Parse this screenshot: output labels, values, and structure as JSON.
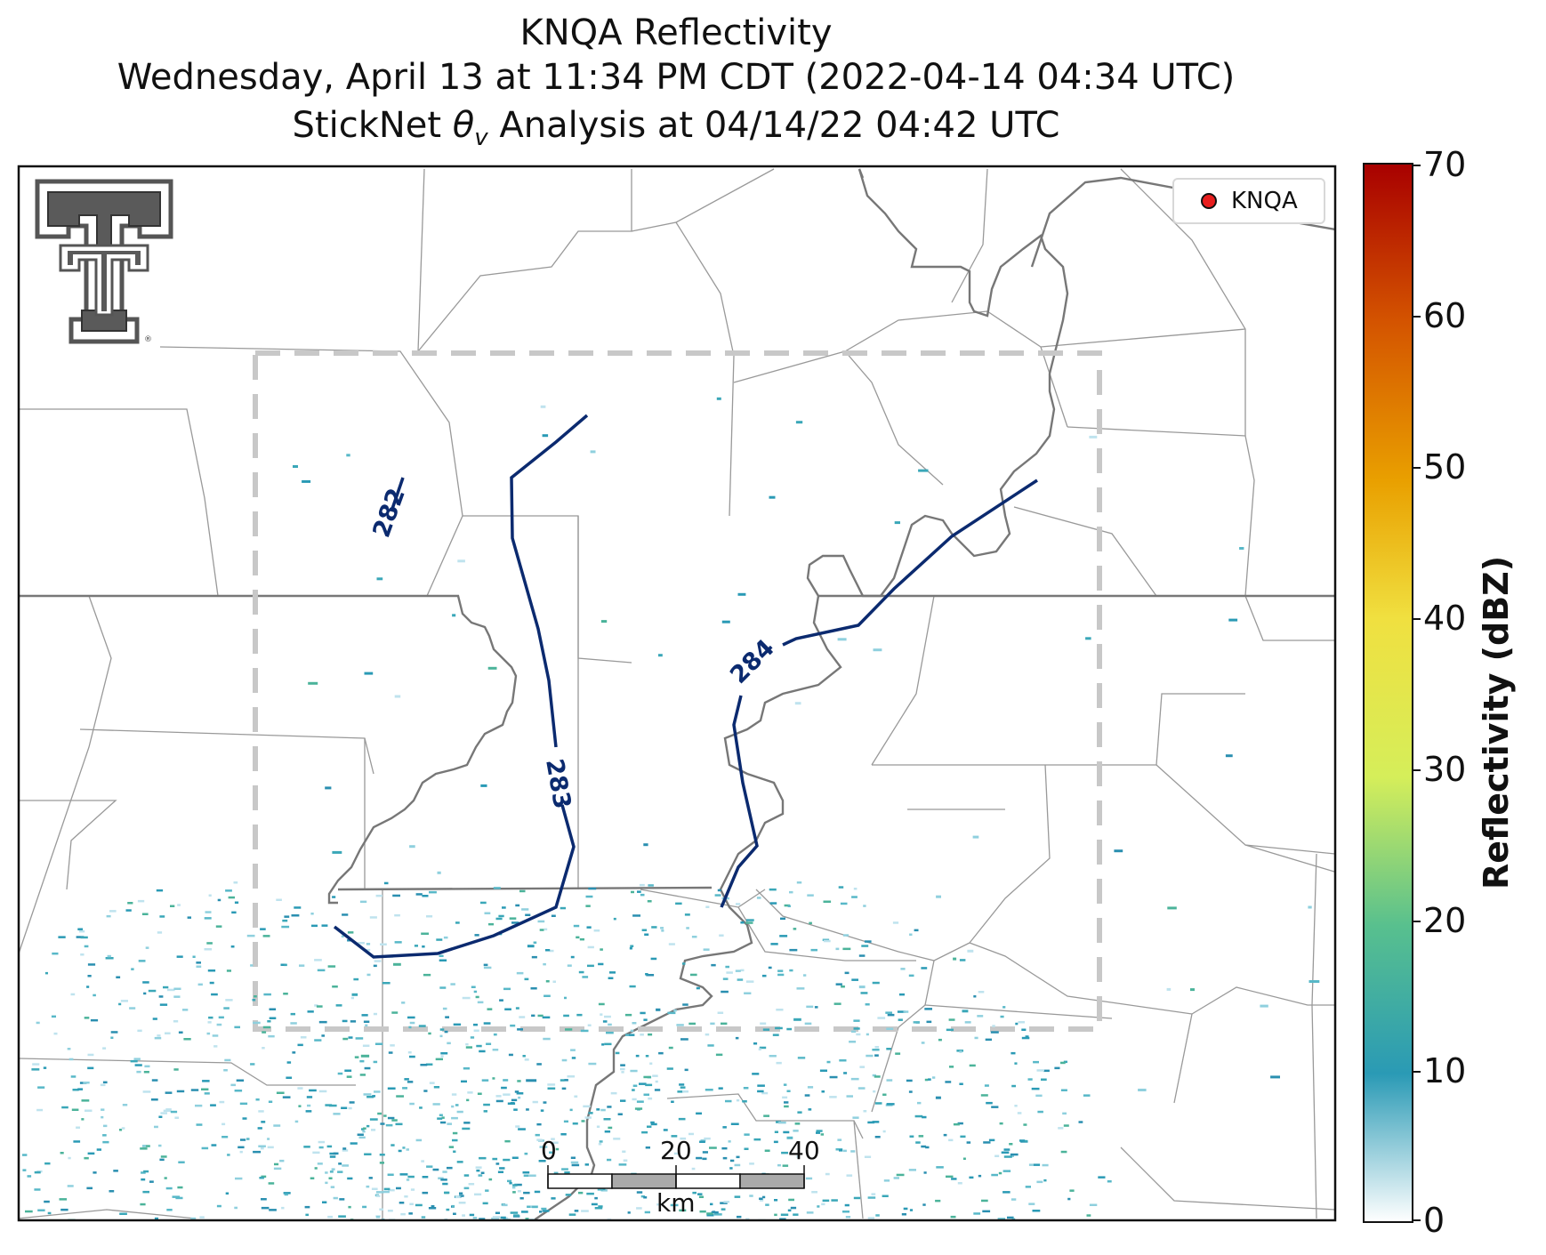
{
  "title": {
    "line1": "KNQA Reflectivity",
    "line2": "Wednesday, April 13 at 11:34 PM CDT (2022-04-14 04:34 UTC)",
    "line3_prefix": "StickNet ",
    "line3_theta": "θ",
    "line3_sub": "v",
    "line3_suffix": " Analysis at 04/14/22 04:42 UTC"
  },
  "legend": {
    "label": "KNQA",
    "marker_color": "#e81e1e"
  },
  "colorbar": {
    "label": "Reflectivity (dBZ)",
    "ticks": [
      "70",
      "60",
      "50",
      "40",
      "30",
      "20",
      "10",
      "0"
    ],
    "range": [
      0,
      70
    ],
    "colors": [
      "#ffffff",
      "#2a9ab5",
      "#58c08e",
      "#d5ee5a",
      "#f0e040",
      "#e9a000",
      "#d45400",
      "#a80000"
    ]
  },
  "contours": {
    "label_282": "282",
    "label_283": "283",
    "label_284": "284",
    "color": "#0b2a6f"
  },
  "scale_bar": {
    "ticks": [
      "0",
      "20",
      "40"
    ],
    "unit": "km"
  },
  "logo": {
    "icon": "texas-tech-double-t-logo"
  }
}
